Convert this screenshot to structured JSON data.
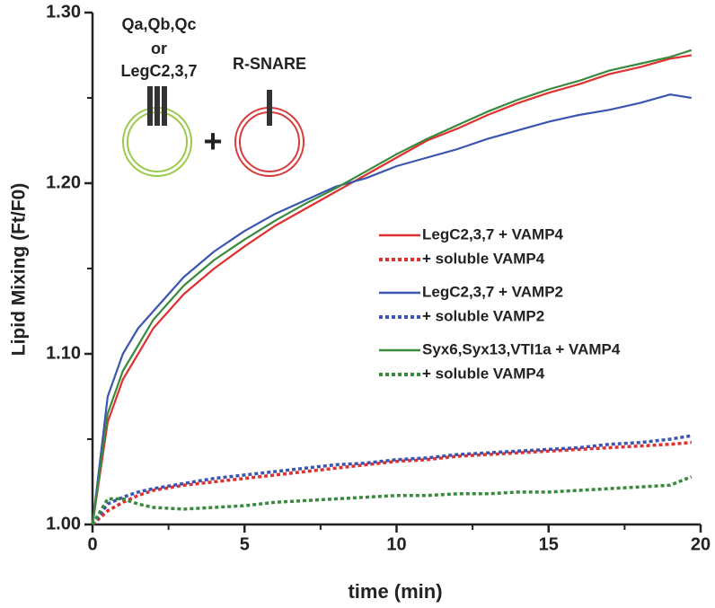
{
  "chart_data": {
    "type": "line",
    "xlabel": "time (min)",
    "ylabel": "Lipid Mixing (Ft/F0)",
    "annotations": [
      "Qa,Qb,Qc",
      "or",
      "LegC2,3,7",
      "R-SNARE",
      "+"
    ],
    "xlim": [
      0,
      20
    ],
    "xticks": [
      0,
      5,
      10,
      15,
      20
    ],
    "xminorticks": [
      2.5,
      7.5,
      12.5,
      17.5
    ],
    "ylim": [
      1.0,
      1.3
    ],
    "yticks": [
      {
        "value": 1.0,
        "label": "1.00"
      },
      {
        "value": 1.1,
        "label": "1.10"
      },
      {
        "value": 1.2,
        "label": "1.20"
      },
      {
        "value": 1.3,
        "label": "1.30"
      }
    ],
    "yminorticks": [
      1.05,
      1.15,
      1.25
    ],
    "x": [
      0,
      0.5,
      1,
      1.5,
      2,
      3,
      4,
      5,
      6,
      7,
      8,
      9,
      10,
      11,
      12,
      13,
      14,
      15,
      16,
      17,
      18,
      19,
      19.7
    ],
    "series": [
      {
        "name": "LegC2,3,7 + VAMP4",
        "color": "#e03131",
        "linestyle": "solid",
        "values": [
          1.0,
          1.06,
          1.085,
          1.1,
          1.115,
          1.135,
          1.15,
          1.163,
          1.175,
          1.185,
          1.195,
          1.205,
          1.215,
          1.225,
          1.232,
          1.24,
          1.247,
          1.253,
          1.258,
          1.264,
          1.268,
          1.273,
          1.275
        ]
      },
      {
        "name": "+ soluble VAMP4",
        "color": "#e03131",
        "linestyle": "dotted",
        "values": [
          1.0,
          1.008,
          1.013,
          1.017,
          1.02,
          1.023,
          1.025,
          1.027,
          1.029,
          1.031,
          1.033,
          1.035,
          1.037,
          1.038,
          1.04,
          1.041,
          1.042,
          1.043,
          1.044,
          1.045,
          1.046,
          1.047,
          1.048
        ]
      },
      {
        "name": "LegC2,3,7 + VAMP2",
        "color": "#3a56b0",
        "linestyle": "solid",
        "values": [
          1.0,
          1.075,
          1.1,
          1.115,
          1.125,
          1.145,
          1.16,
          1.172,
          1.182,
          1.19,
          1.198,
          1.203,
          1.21,
          1.215,
          1.22,
          1.226,
          1.231,
          1.236,
          1.24,
          1.243,
          1.247,
          1.252,
          1.25
        ]
      },
      {
        "name": "+ soluble VAMP2",
        "color": "#3a56b0",
        "linestyle": "dotted",
        "values": [
          1.0,
          1.012,
          1.016,
          1.019,
          1.021,
          1.024,
          1.027,
          1.029,
          1.031,
          1.033,
          1.035,
          1.036,
          1.038,
          1.039,
          1.041,
          1.042,
          1.043,
          1.044,
          1.045,
          1.047,
          1.048,
          1.05,
          1.052
        ]
      },
      {
        "name": "Syx6,Syx13,VTI1a + VAMP4",
        "color": "#3a8a3e",
        "linestyle": "solid",
        "values": [
          1.0,
          1.065,
          1.09,
          1.105,
          1.12,
          1.14,
          1.155,
          1.167,
          1.178,
          1.188,
          1.197,
          1.207,
          1.217,
          1.226,
          1.234,
          1.242,
          1.249,
          1.255,
          1.26,
          1.266,
          1.27,
          1.274,
          1.278
        ]
      },
      {
        "name": "+ soluble VAMP4",
        "color": "#3a8a3e",
        "linestyle": "dotted",
        "values": [
          1.0,
          1.015,
          1.015,
          1.012,
          1.01,
          1.009,
          1.01,
          1.011,
          1.013,
          1.014,
          1.015,
          1.016,
          1.017,
          1.017,
          1.018,
          1.018,
          1.019,
          1.019,
          1.02,
          1.021,
          1.022,
          1.023,
          1.028
        ]
      }
    ]
  }
}
